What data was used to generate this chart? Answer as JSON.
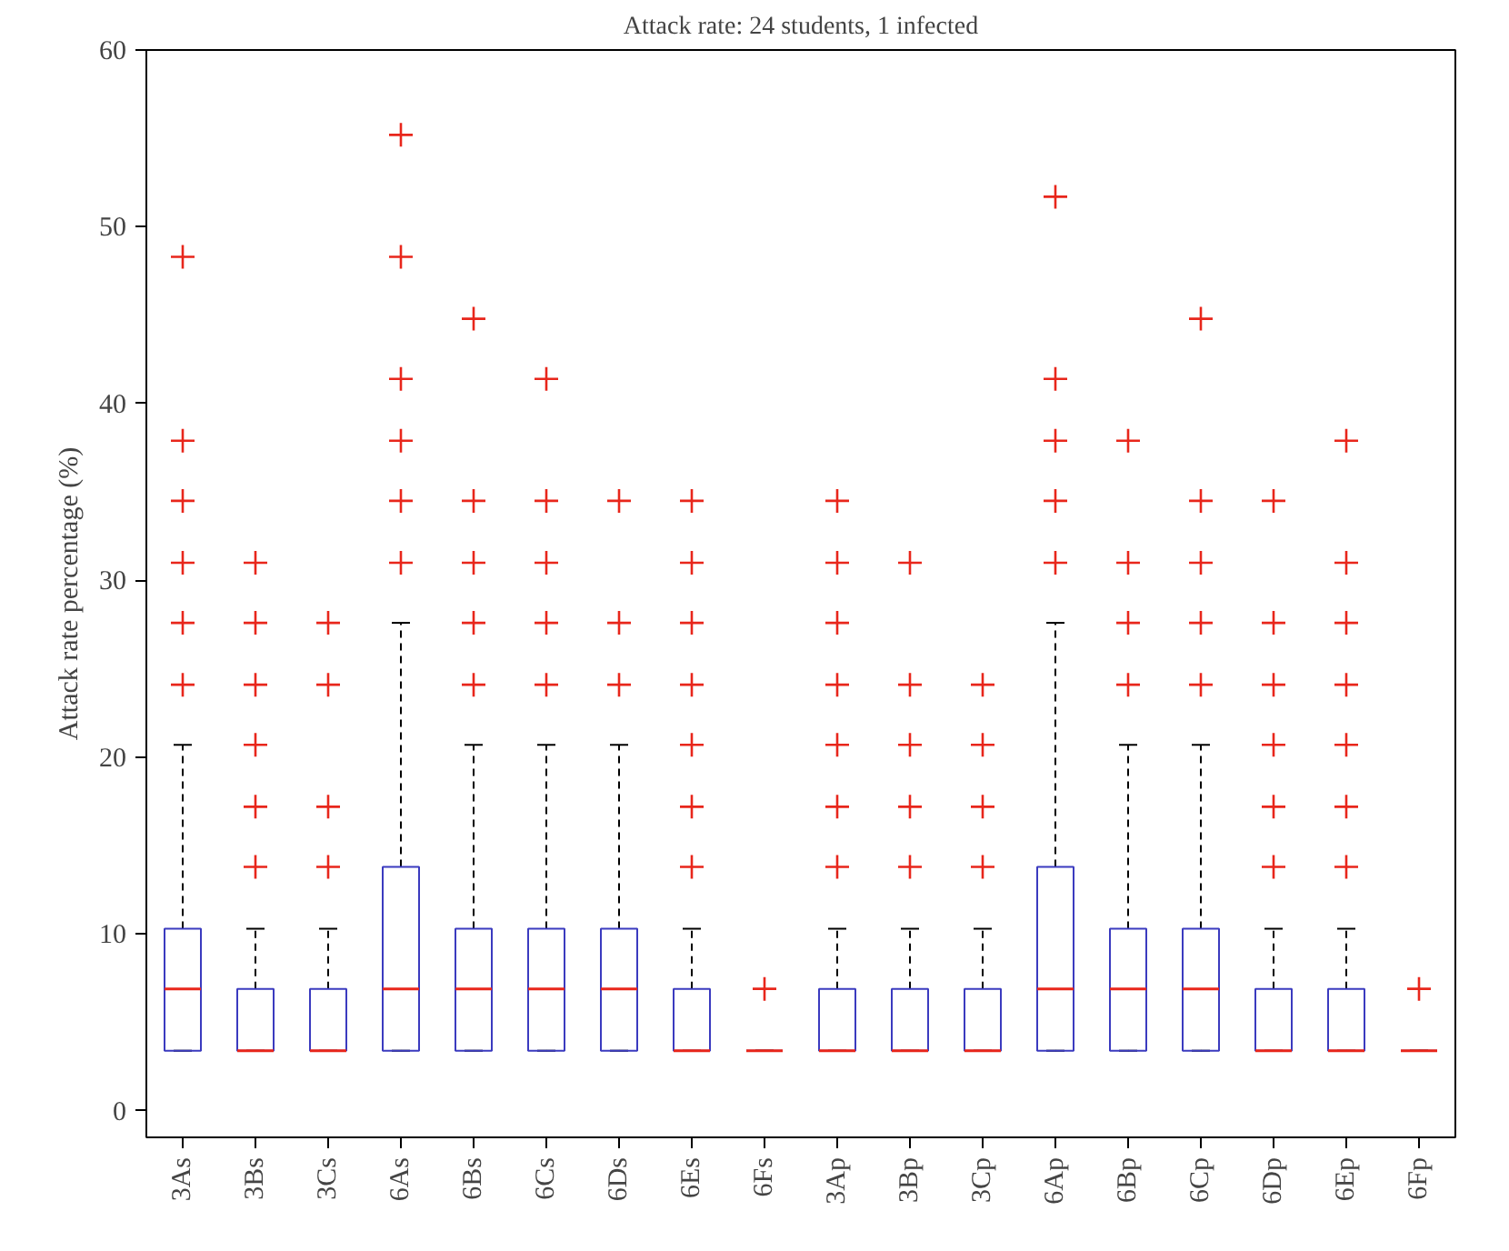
{
  "chart_data": {
    "type": "box",
    "title": "Attack rate: 24 students, 1 infected",
    "ylabel": "Attack rate percentage (%)",
    "categories": [
      "3As",
      "3Bs",
      "3Cs",
      "6As",
      "6Bs",
      "6Cs",
      "6Ds",
      "6Es",
      "6Fs",
      "3Ap",
      "3Bp",
      "3Cp",
      "6Ap",
      "6Bp",
      "6Cp",
      "6Dp",
      "6Ep",
      "6Fp"
    ],
    "ylim": [
      -1.5,
      60
    ],
    "yticks": [
      0,
      10,
      20,
      30,
      40,
      50,
      60
    ],
    "grid": false,
    "marker": "cross",
    "boxes": [
      {
        "low": 3.4,
        "q1": 3.4,
        "median": 6.9,
        "q3": 10.3,
        "high": 20.7,
        "outliers": [
          24.1,
          27.6,
          31.0,
          34.5,
          37.9,
          48.3
        ]
      },
      {
        "low": 3.4,
        "q1": 3.4,
        "median": 3.4,
        "q3": 6.9,
        "high": 10.3,
        "outliers": [
          13.8,
          17.2,
          20.7,
          24.1,
          27.6,
          31.0
        ]
      },
      {
        "low": 3.4,
        "q1": 3.4,
        "median": 3.4,
        "q3": 6.9,
        "high": 10.3,
        "outliers": [
          13.8,
          17.2,
          24.1,
          27.6
        ]
      },
      {
        "low": 3.4,
        "q1": 3.4,
        "median": 6.9,
        "q3": 13.8,
        "high": 27.6,
        "outliers": [
          31.0,
          34.5,
          37.9,
          41.4,
          48.3,
          55.2
        ]
      },
      {
        "low": 3.4,
        "q1": 3.4,
        "median": 6.9,
        "q3": 10.3,
        "high": 20.7,
        "outliers": [
          24.1,
          27.6,
          31.0,
          34.5,
          44.8
        ]
      },
      {
        "low": 3.4,
        "q1": 3.4,
        "median": 6.9,
        "q3": 10.3,
        "high": 20.7,
        "outliers": [
          24.1,
          27.6,
          31.0,
          34.5,
          41.4
        ]
      },
      {
        "low": 3.4,
        "q1": 3.4,
        "median": 6.9,
        "q3": 10.3,
        "high": 20.7,
        "outliers": [
          24.1,
          27.6,
          34.5
        ]
      },
      {
        "low": 3.4,
        "q1": 3.4,
        "median": 3.4,
        "q3": 6.9,
        "high": 10.3,
        "outliers": [
          13.8,
          17.2,
          20.7,
          24.1,
          27.6,
          31.0,
          34.5
        ]
      },
      {
        "low": 3.4,
        "q1": 3.4,
        "median": 3.4,
        "q3": 3.4,
        "high": 3.4,
        "outliers": [
          6.9
        ]
      },
      {
        "low": 3.4,
        "q1": 3.4,
        "median": 3.4,
        "q3": 6.9,
        "high": 10.3,
        "outliers": [
          13.8,
          17.2,
          20.7,
          24.1,
          27.6,
          31.0,
          34.5
        ]
      },
      {
        "low": 3.4,
        "q1": 3.4,
        "median": 3.4,
        "q3": 6.9,
        "high": 10.3,
        "outliers": [
          13.8,
          17.2,
          20.7,
          24.1,
          31.0
        ]
      },
      {
        "low": 3.4,
        "q1": 3.4,
        "median": 3.4,
        "q3": 6.9,
        "high": 10.3,
        "outliers": [
          13.8,
          17.2,
          20.7,
          24.1
        ]
      },
      {
        "low": 3.4,
        "q1": 3.4,
        "median": 6.9,
        "q3": 13.8,
        "high": 27.6,
        "outliers": [
          31.0,
          34.5,
          37.9,
          41.4,
          51.7
        ]
      },
      {
        "low": 3.4,
        "q1": 3.4,
        "median": 6.9,
        "q3": 10.3,
        "high": 20.7,
        "outliers": [
          24.1,
          27.6,
          31.0,
          37.9
        ]
      },
      {
        "low": 3.4,
        "q1": 3.4,
        "median": 6.9,
        "q3": 10.3,
        "high": 20.7,
        "outliers": [
          24.1,
          27.6,
          31.0,
          34.5,
          44.8
        ]
      },
      {
        "low": 3.4,
        "q1": 3.4,
        "median": 3.4,
        "q3": 6.9,
        "high": 10.3,
        "outliers": [
          13.8,
          17.2,
          20.7,
          24.1,
          27.6,
          34.5
        ]
      },
      {
        "low": 3.4,
        "q1": 3.4,
        "median": 3.4,
        "q3": 6.9,
        "high": 10.3,
        "outliers": [
          13.8,
          17.2,
          20.7,
          24.1,
          27.6,
          31.0,
          37.9
        ]
      },
      {
        "low": 3.4,
        "q1": 3.4,
        "median": 3.4,
        "q3": 3.4,
        "high": 3.4,
        "outliers": [
          6.9
        ]
      }
    ]
  }
}
